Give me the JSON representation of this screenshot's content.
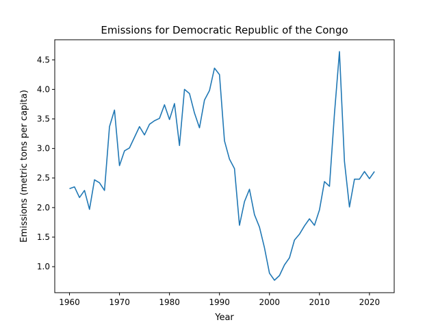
{
  "chart_data": {
    "type": "line",
    "title": "Emissions for Democratic Republic of the Congo",
    "xlabel": "Year",
    "ylabel": "Emissions (metric tons per capita)",
    "xlim": [
      1957.05,
      2024.95
    ],
    "ylim": [
      0.56,
      4.84
    ],
    "xticks": [
      1960,
      1970,
      1980,
      1990,
      2000,
      2010,
      2020
    ],
    "yticks": [
      1.0,
      1.5,
      2.0,
      2.5,
      3.0,
      3.5,
      4.0,
      4.5
    ],
    "ytick_labels": [
      "1.0",
      "1.5",
      "2.0",
      "2.5",
      "3.0",
      "3.5",
      "4.0",
      "4.5"
    ],
    "grid": false,
    "series": [
      {
        "color": "#1f77b4",
        "x": [
          1960,
          1961,
          1962,
          1963,
          1964,
          1965,
          1966,
          1967,
          1968,
          1969,
          1970,
          1971,
          1972,
          1973,
          1974,
          1975,
          1976,
          1977,
          1978,
          1979,
          1980,
          1981,
          1982,
          1983,
          1984,
          1985,
          1986,
          1987,
          1988,
          1989,
          1990,
          1991,
          1992,
          1993,
          1994,
          1995,
          1996,
          1997,
          1998,
          1999,
          2000,
          2001,
          2002,
          2003,
          2004,
          2005,
          2006,
          2007,
          2008,
          2009,
          2010,
          2011,
          2012,
          2013,
          2014,
          2015,
          2016,
          2017,
          2018,
          2019,
          2020,
          2021
        ],
        "y": [
          2.32,
          2.35,
          2.17,
          2.29,
          1.97,
          2.47,
          2.42,
          2.29,
          3.37,
          3.65,
          2.71,
          2.96,
          3.01,
          3.19,
          3.37,
          3.23,
          3.41,
          3.47,
          3.51,
          3.74,
          3.49,
          3.76,
          3.05,
          4.0,
          3.93,
          3.6,
          3.35,
          3.82,
          3.98,
          4.36,
          4.25,
          3.13,
          2.82,
          2.66,
          1.7,
          2.1,
          2.31,
          1.88,
          1.67,
          1.32,
          0.89,
          0.77,
          0.85,
          1.03,
          1.15,
          1.45,
          1.55,
          1.69,
          1.81,
          1.7,
          1.96,
          2.44,
          2.36,
          3.59,
          4.64,
          2.78,
          2.01,
          2.48,
          2.48,
          2.61,
          2.49,
          2.61
        ]
      }
    ]
  }
}
